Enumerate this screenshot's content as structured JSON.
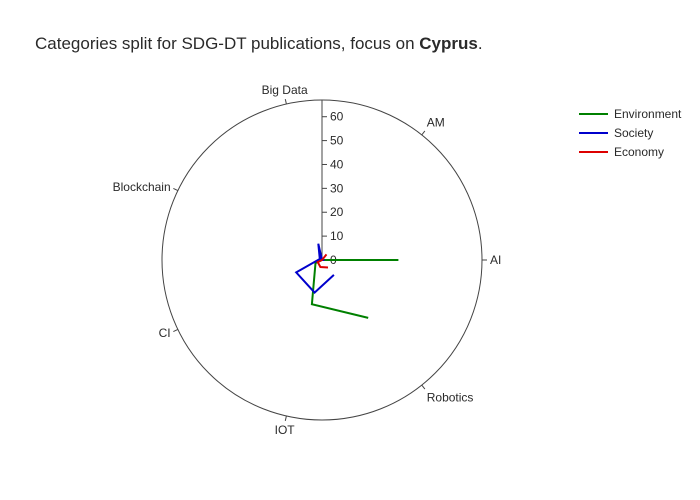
{
  "title": {
    "prefix": "Categories split for SDG-DT publications, focus on ",
    "emphasis": "Cyprus",
    "suffix": "."
  },
  "chart_data": {
    "type": "radar",
    "categories": [
      "AI",
      "AM",
      "Big Data",
      "Blockchain",
      "CI",
      "IOT",
      "Robotics"
    ],
    "radial_ticks": [
      0,
      10,
      20,
      30,
      40,
      50,
      60
    ],
    "rlim": [
      0,
      67
    ],
    "series": [
      {
        "name": "Environment",
        "color": "#008000",
        "values": [
          32,
          0,
          1,
          0,
          3,
          19,
          31
        ]
      },
      {
        "name": "Society",
        "color": "#0000cc",
        "values": [
          1,
          0,
          7,
          1,
          12,
          14,
          8
        ]
      },
      {
        "name": "Economy",
        "color": "#dd0000",
        "values": [
          0,
          3,
          0,
          0,
          2,
          3,
          4
        ]
      }
    ],
    "legend_position": "top-right"
  }
}
